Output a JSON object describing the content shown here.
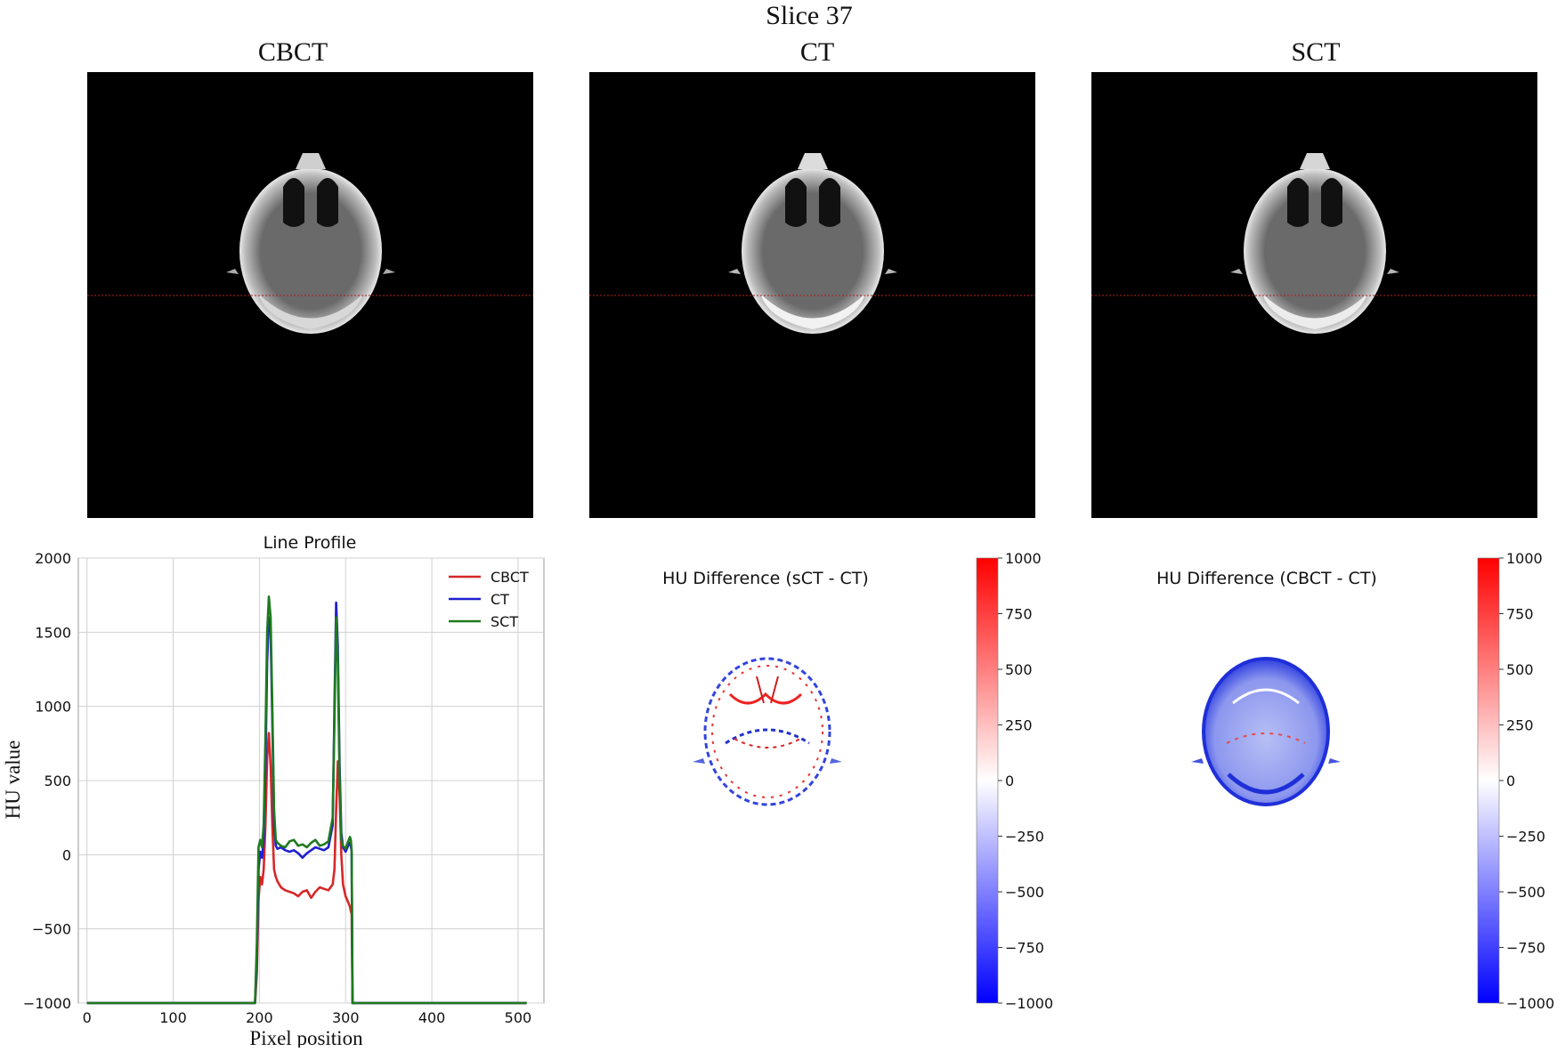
{
  "suptitle": "Slice 37",
  "panels": [
    {
      "title": "CBCT",
      "hint": "CBCT"
    },
    {
      "title": "CT",
      "hint": "CT"
    },
    {
      "title": "SCT",
      "hint": "SCT"
    }
  ],
  "colors": {
    "cbct": "#d62728",
    "ct": "#1f1fd0",
    "sct": "#1f7a1f",
    "profile_line": "#b02020",
    "grid": "#d0d0d0"
  },
  "chart_data": [
    {
      "type": "line",
      "title": "Line Profile",
      "xlabel": "Pixel position",
      "ylabel": "HU value",
      "xlim": [
        -10,
        530
      ],
      "ylim": [
        -1000,
        2000
      ],
      "xticks": [
        "0",
        "100",
        "200",
        "300",
        "400",
        "500"
      ],
      "xtick_values": [
        0,
        100,
        200,
        300,
        400,
        500
      ],
      "yticks": [
        "2000",
        "1500",
        "1000",
        "500",
        "0",
        "−500",
        "−1000"
      ],
      "ytick_values": [
        2000,
        1500,
        1000,
        500,
        0,
        -500,
        -1000
      ],
      "grid": true,
      "legend_position": "top-right",
      "series": [
        {
          "name": "CBCT",
          "color_key": "cbct",
          "x": [
            0,
            195,
            197,
            199,
            201,
            203,
            205,
            207,
            209,
            211,
            213,
            215,
            217,
            219,
            221,
            225,
            230,
            235,
            240,
            245,
            250,
            255,
            260,
            265,
            270,
            275,
            280,
            285,
            287,
            289,
            291,
            293,
            295,
            297,
            300,
            303,
            305,
            306,
            307,
            308,
            510
          ],
          "y": [
            -1000,
            -1000,
            -800,
            -300,
            -150,
            -200,
            -100,
            200,
            650,
            820,
            600,
            200,
            -100,
            -150,
            -180,
            -220,
            -240,
            -250,
            -260,
            -280,
            -250,
            -240,
            -290,
            -250,
            -220,
            -230,
            -240,
            -200,
            -100,
            300,
            630,
            400,
            0,
            -200,
            -280,
            -320,
            -350,
            -380,
            -400,
            -1000,
            -1000
          ]
        },
        {
          "name": "CT",
          "color_key": "ct",
          "x": [
            0,
            195,
            197,
            199,
            201,
            203,
            205,
            207,
            209,
            211,
            213,
            215,
            217,
            219,
            221,
            225,
            230,
            235,
            240,
            245,
            250,
            255,
            260,
            265,
            270,
            275,
            280,
            285,
            287,
            289,
            291,
            293,
            295,
            297,
            300,
            303,
            305,
            306,
            307,
            308,
            510
          ],
          "y": [
            -1000,
            -1000,
            -700,
            -100,
            20,
            -20,
            100,
            600,
            1300,
            1600,
            1500,
            900,
            200,
            60,
            40,
            50,
            30,
            20,
            30,
            10,
            -20,
            10,
            30,
            50,
            40,
            30,
            50,
            200,
            1000,
            1700,
            1400,
            600,
            150,
            50,
            20,
            60,
            80,
            60,
            20,
            -1000,
            -1000
          ]
        },
        {
          "name": "SCT",
          "color_key": "sct",
          "x": [
            0,
            195,
            197,
            199,
            201,
            203,
            205,
            207,
            209,
            211,
            213,
            215,
            217,
            219,
            221,
            225,
            230,
            235,
            240,
            245,
            250,
            255,
            260,
            265,
            270,
            275,
            280,
            285,
            287,
            289,
            291,
            293,
            295,
            297,
            300,
            303,
            305,
            306,
            307,
            308,
            510
          ],
          "y": [
            -1000,
            -1000,
            -600,
            50,
            100,
            50,
            200,
            800,
            1500,
            1740,
            1600,
            1000,
            300,
            100,
            80,
            60,
            50,
            90,
            100,
            60,
            70,
            50,
            80,
            100,
            60,
            70,
            90,
            250,
            900,
            1600,
            1300,
            500,
            100,
            60,
            40,
            90,
            120,
            100,
            30,
            -1000,
            -1000
          ]
        }
      ]
    },
    {
      "type": "heatmap",
      "title": "HU Difference (sCT - CT)",
      "colorbar": {
        "range": [
          -1000,
          1000
        ],
        "ticks": [
          "1000",
          "750",
          "500",
          "250",
          "0",
          "−250",
          "−500",
          "−750",
          "−1000"
        ],
        "tick_values": [
          1000,
          750,
          500,
          250,
          0,
          -250,
          -500,
          -750,
          -1000
        ],
        "cmap": "bwr"
      }
    },
    {
      "type": "heatmap",
      "title": "HU Difference (CBCT - CT)",
      "colorbar": {
        "range": [
          -1000,
          1000
        ],
        "ticks": [
          "1000",
          "750",
          "500",
          "250",
          "0",
          "−250",
          "−500",
          "−750",
          "−1000"
        ],
        "tick_values": [
          1000,
          750,
          500,
          250,
          0,
          -250,
          -500,
          -750,
          -1000
        ],
        "cmap": "bwr"
      }
    }
  ]
}
